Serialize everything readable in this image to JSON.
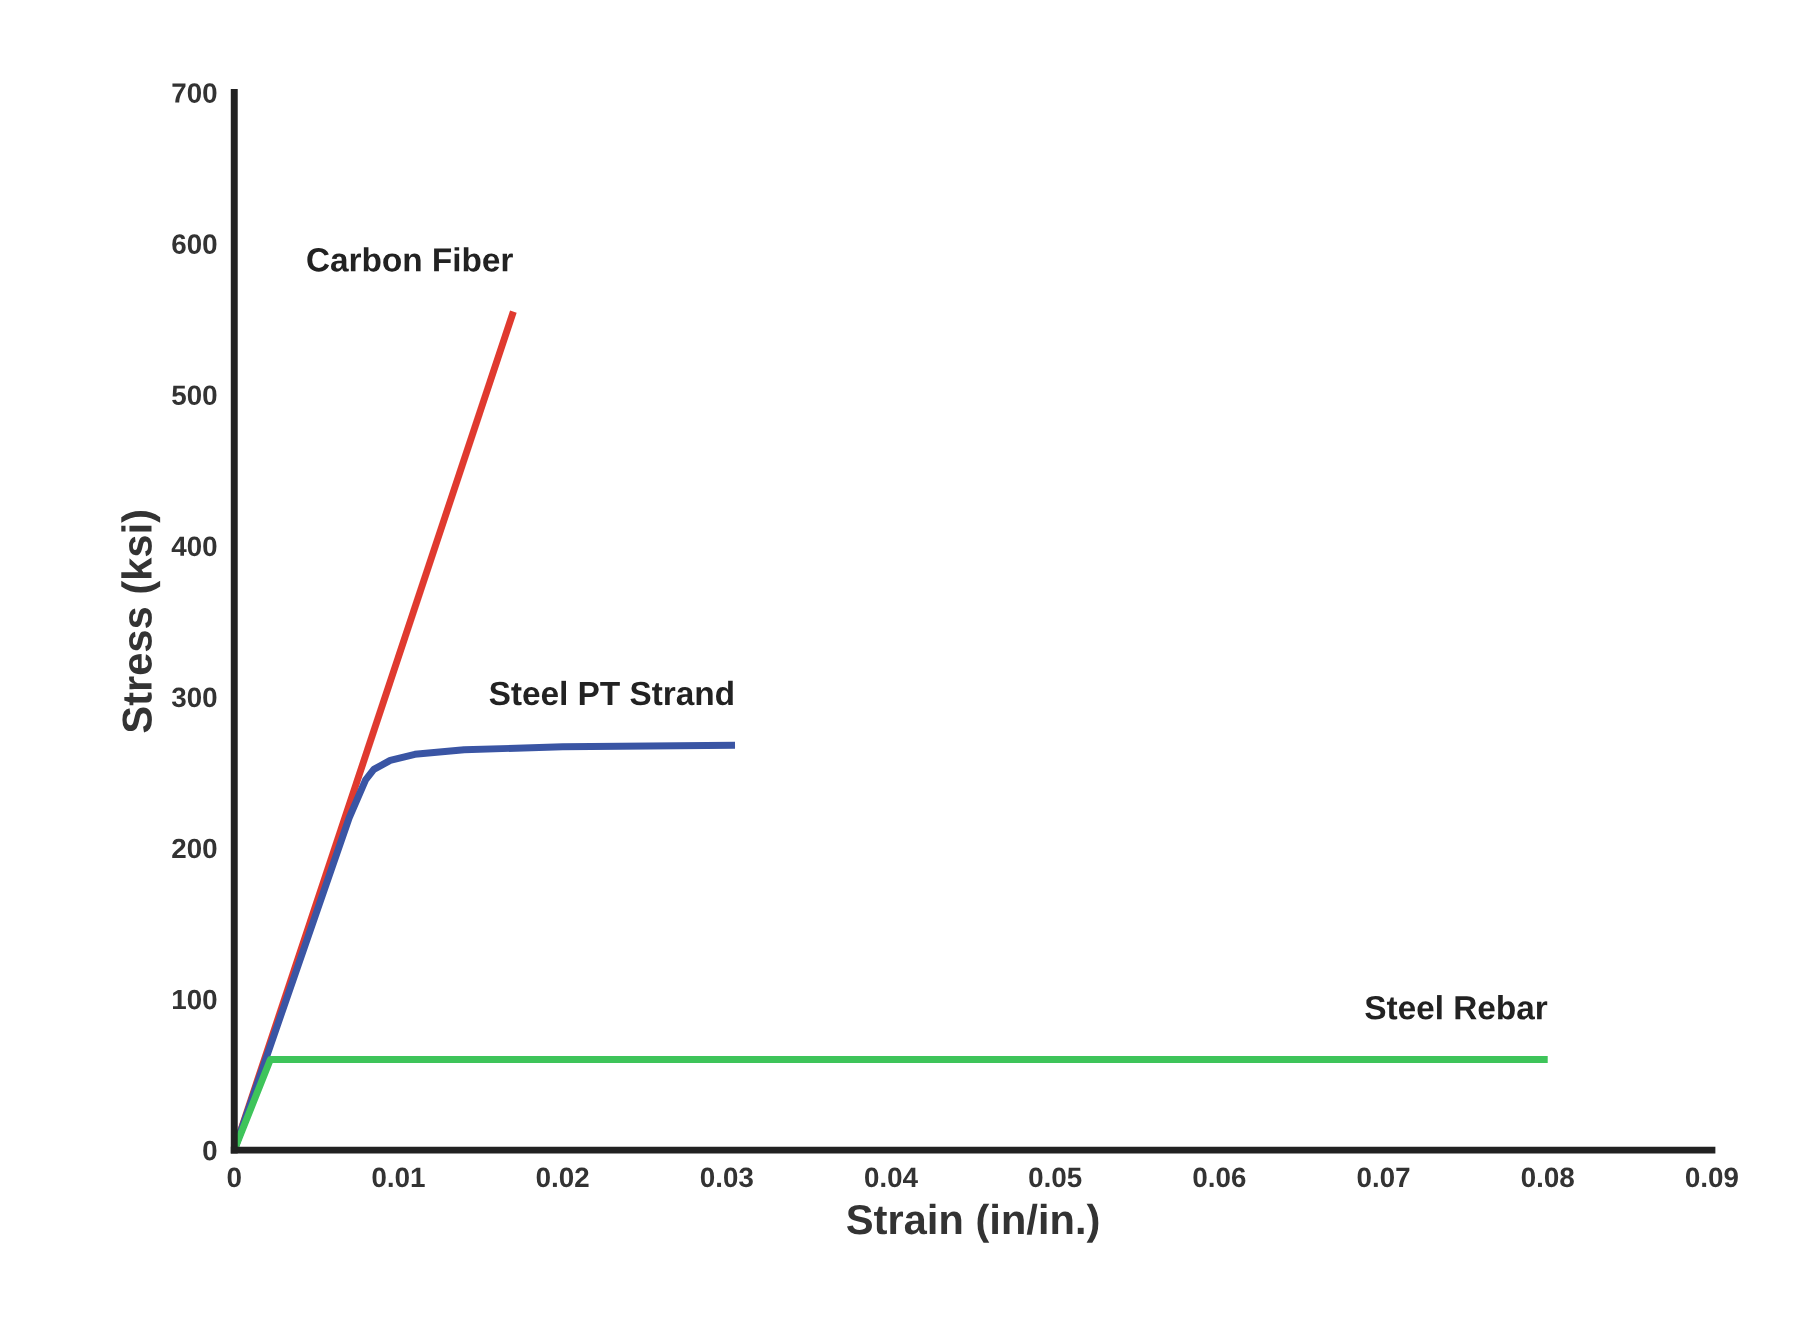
{
  "chart_data": {
    "type": "line",
    "xlabel": "Strain (in/in.)",
    "ylabel": "Stress (ksi)",
    "xlim": [
      0,
      0.09
    ],
    "xticks": [
      0,
      0.01,
      0.02,
      0.03,
      0.04,
      0.05,
      0.06,
      0.07,
      0.08,
      0.09
    ],
    "ylim": [
      0,
      700
    ],
    "yticks": [
      0,
      100,
      200,
      300,
      400,
      500,
      600,
      700
    ],
    "grid": false,
    "legend": false,
    "marker": "none",
    "line_style": "solid",
    "series": [
      {
        "name": "Carbon Fiber",
        "color": "#e03a2f",
        "x": [
          0,
          0.017
        ],
        "values": [
          0,
          555
        ]
      },
      {
        "name": "Steel PT Strand",
        "color": "#3a55a4",
        "x": [
          0,
          0.007,
          0.008,
          0.0085,
          0.0095,
          0.011,
          0.014,
          0.02,
          0.0305
        ],
        "values": [
          0,
          220,
          245,
          252,
          258,
          262,
          265,
          267,
          268
        ]
      },
      {
        "name": "Steel Rebar",
        "color": "#3ec45a",
        "x": [
          0,
          0.0022,
          0.08
        ],
        "values": [
          0,
          60,
          60
        ]
      }
    ]
  }
}
